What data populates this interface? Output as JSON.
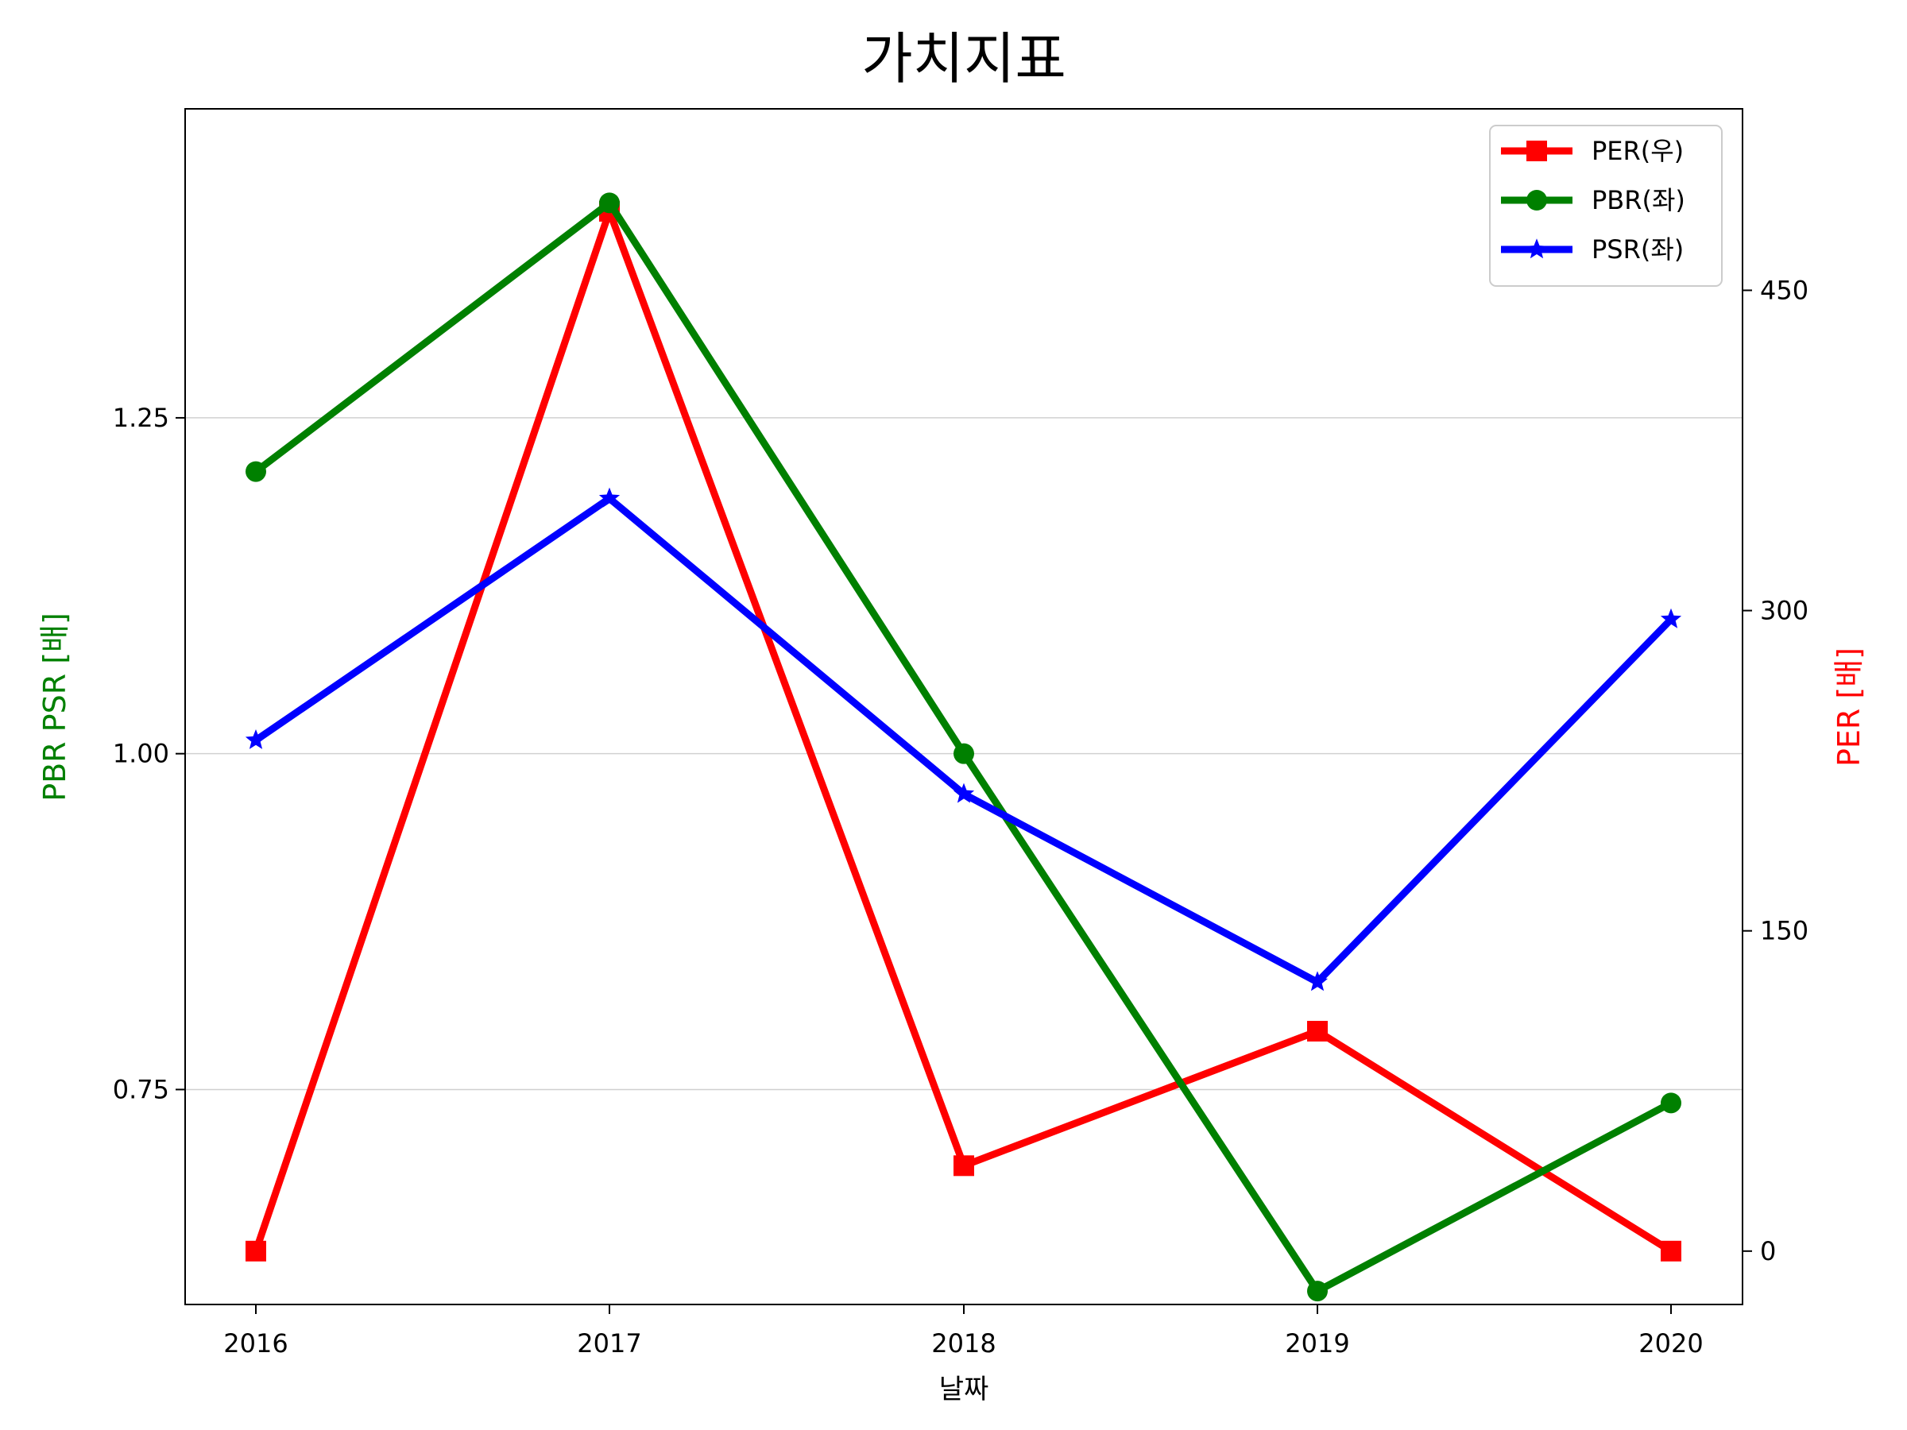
{
  "chart_data": {
    "type": "line",
    "title": "가치지표",
    "xlabel": "날짜",
    "ylabel_left": "PBR PSR [배]",
    "ylabel_right": "PER [배]",
    "categories": [
      "2016",
      "2017",
      "2018",
      "2019",
      "2020"
    ],
    "left_axis": {
      "ylim": [
        0.59,
        1.48
      ],
      "ticks": [
        0.75,
        1.0,
        1.25
      ],
      "tick_labels": [
        "0.75",
        "1.00",
        "1.25"
      ],
      "color": "#008000"
    },
    "right_axis": {
      "ylim": [
        -25,
        535
      ],
      "ticks": [
        0,
        150,
        300,
        450
      ],
      "tick_labels": [
        "0",
        "150",
        "300",
        "450"
      ],
      "color": "#ff0000"
    },
    "grid": "horizontal",
    "legend_position": "top-right",
    "series": [
      {
        "name": "PER(우)",
        "axis": "right",
        "color": "#ff0000",
        "marker": "square",
        "values": [
          0,
          487,
          40,
          103,
          0
        ]
      },
      {
        "name": "PBR(좌)",
        "axis": "left",
        "color": "#008000",
        "marker": "circle",
        "values": [
          1.21,
          1.41,
          1.0,
          0.6,
          0.74
        ]
      },
      {
        "name": "PSR(좌)",
        "axis": "left",
        "color": "#0000ff",
        "marker": "star",
        "values": [
          1.01,
          1.19,
          0.97,
          0.83,
          1.1
        ]
      }
    ]
  }
}
